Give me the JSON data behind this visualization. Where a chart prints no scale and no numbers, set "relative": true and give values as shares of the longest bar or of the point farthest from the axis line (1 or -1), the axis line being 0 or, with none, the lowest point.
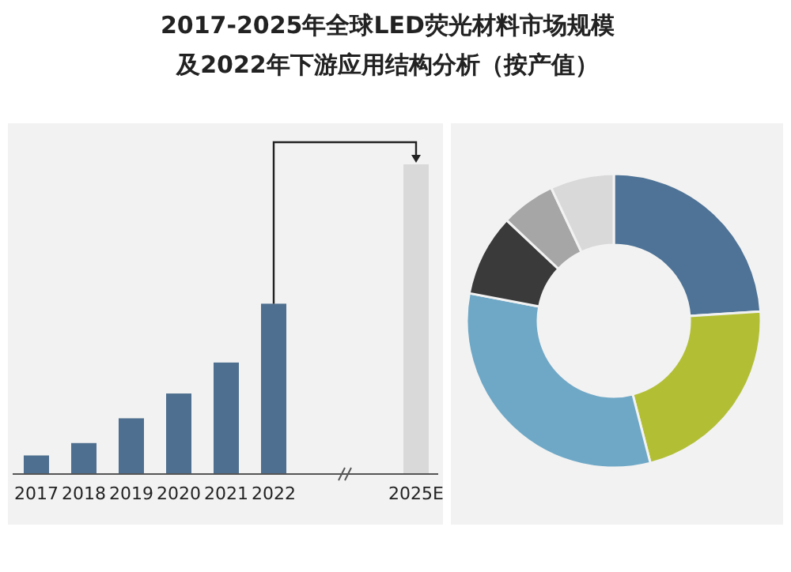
{
  "chart_data": [
    {
      "type": "bar",
      "title": "2017-2025年全球LED荧光材料市场规模及2022年下游应用结构分析（按产值）",
      "relative": true,
      "categories": [
        "2017",
        "2018",
        "2019",
        "2020",
        "2021",
        "2022",
        null,
        null,
        "2025E"
      ],
      "values": [
        0.06,
        0.1,
        0.18,
        0.26,
        0.36,
        0.55,
        null,
        null,
        1
      ],
      "colors": [
        "#4e6f8f",
        "#4e6f8f",
        "#4e6f8f",
        "#4e6f8f",
        "#4e6f8f",
        "#4e6f8f",
        null,
        null,
        "#d9d9d9"
      ]
    },
    {
      "type": "donut",
      "categories": [
        null,
        null,
        null,
        null,
        null,
        null
      ],
      "values": [
        24,
        22,
        32,
        9,
        6,
        7
      ],
      "colors": [
        "#4e7396",
        "#b2bf35",
        "#6fa8c6",
        "#3a3a3a",
        "#a6a6a6",
        "#d9d9d9"
      ]
    }
  ]
}
